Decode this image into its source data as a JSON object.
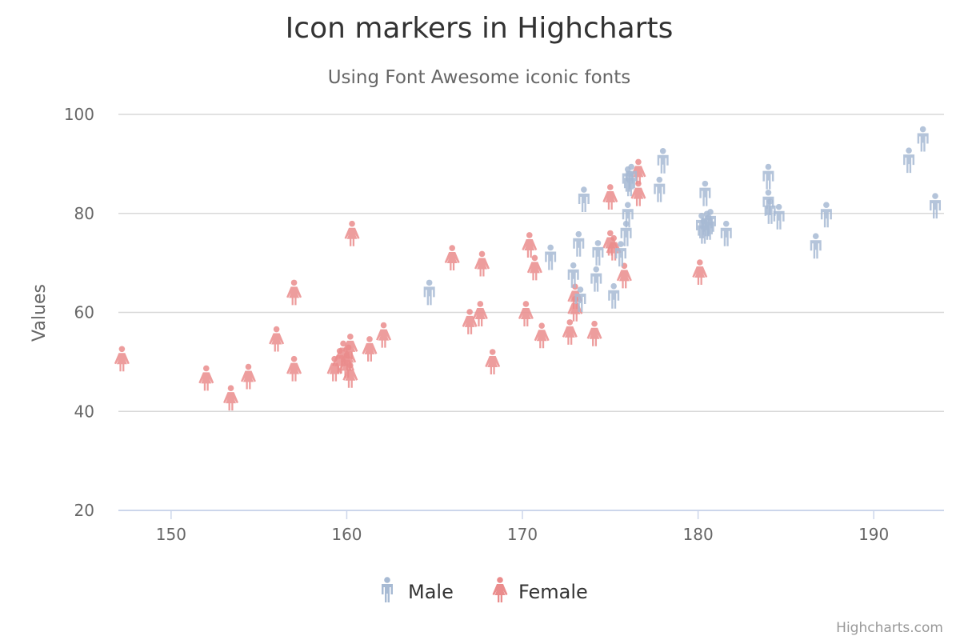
{
  "chart_data": {
    "type": "scatter",
    "title": "Icon markers in Highcharts",
    "subtitle": "Using Font Awesome iconic fonts",
    "xlabel": "",
    "ylabel": "Values",
    "xlim": [
      147,
      194
    ],
    "ylim": [
      20,
      100
    ],
    "x_ticks": [
      150,
      160,
      170,
      180,
      190
    ],
    "y_ticks": [
      20,
      40,
      60,
      80,
      100
    ],
    "grid": true,
    "legend_position": "bottom-center",
    "credits": "Highcharts.com",
    "series": [
      {
        "name": "Male",
        "color": "#a7bad3",
        "marker": "male-icon",
        "points": [
          [
            164.7,
            63.9
          ],
          [
            171.6,
            71.0
          ],
          [
            172.9,
            67.4
          ],
          [
            173.2,
            73.7
          ],
          [
            173.3,
            62.5
          ],
          [
            173.5,
            82.7
          ],
          [
            174.2,
            66.6
          ],
          [
            174.3,
            71.9
          ],
          [
            175.2,
            63.2
          ],
          [
            175.6,
            71.7
          ],
          [
            175.9,
            75.8
          ],
          [
            176.0,
            79.6
          ],
          [
            176.0,
            86.8
          ],
          [
            176.1,
            85.9
          ],
          [
            176.2,
            87.3
          ],
          [
            177.8,
            84.7
          ],
          [
            178.0,
            90.5
          ],
          [
            180.2,
            77.4
          ],
          [
            180.3,
            76.3
          ],
          [
            180.4,
            83.9
          ],
          [
            180.5,
            77.8
          ],
          [
            180.6,
            77.1
          ],
          [
            180.7,
            78.2
          ],
          [
            181.6,
            75.8
          ],
          [
            184.0,
            87.3
          ],
          [
            184.0,
            82.1
          ],
          [
            184.1,
            80.3
          ],
          [
            184.6,
            79.2
          ],
          [
            186.7,
            73.3
          ],
          [
            187.3,
            79.6
          ],
          [
            192.0,
            90.6
          ],
          [
            192.8,
            94.9
          ],
          [
            193.5,
            81.4
          ]
        ]
      },
      {
        "name": "Female",
        "color": "#ea8c8c",
        "marker": "female-icon",
        "points": [
          [
            147.2,
            50.5
          ],
          [
            152.0,
            46.6
          ],
          [
            153.4,
            42.6
          ],
          [
            154.4,
            46.9
          ],
          [
            156.0,
            54.5
          ],
          [
            157.0,
            48.5
          ],
          [
            157.0,
            63.9
          ],
          [
            159.3,
            48.5
          ],
          [
            159.6,
            50.1
          ],
          [
            159.8,
            51.6
          ],
          [
            160.0,
            49.2
          ],
          [
            160.1,
            50.8
          ],
          [
            160.2,
            47.2
          ],
          [
            160.2,
            53.0
          ],
          [
            160.3,
            75.8
          ],
          [
            161.3,
            52.5
          ],
          [
            162.1,
            55.3
          ],
          [
            166.0,
            70.9
          ],
          [
            167.0,
            58.0
          ],
          [
            167.6,
            59.6
          ],
          [
            167.7,
            69.7
          ],
          [
            168.3,
            49.9
          ],
          [
            170.2,
            59.6
          ],
          [
            170.4,
            73.5
          ],
          [
            170.7,
            68.9
          ],
          [
            171.1,
            55.2
          ],
          [
            172.7,
            55.9
          ],
          [
            173.0,
            63.1
          ],
          [
            173.0,
            60.6
          ],
          [
            174.1,
            55.6
          ],
          [
            175.0,
            83.2
          ],
          [
            175.0,
            73.9
          ],
          [
            175.2,
            72.9
          ],
          [
            175.8,
            67.3
          ],
          [
            176.6,
            88.3
          ],
          [
            176.6,
            83.9
          ],
          [
            180.1,
            68.0
          ]
        ]
      }
    ]
  }
}
